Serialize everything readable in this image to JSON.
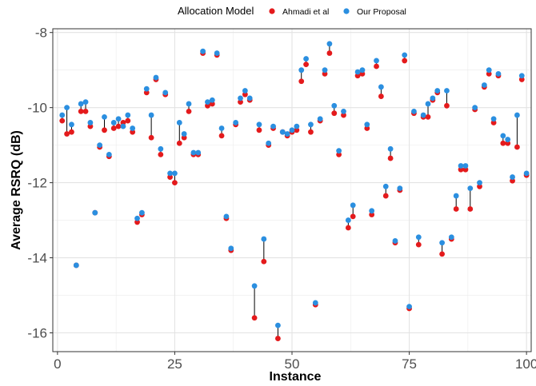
{
  "chart_data": {
    "type": "scatter",
    "title": "",
    "xlabel": "Instance",
    "ylabel": "Average RSRQ (dB)",
    "xlim": [
      -1,
      101
    ],
    "ylim": [
      -16.5,
      -7.9
    ],
    "x_ticks": [
      0,
      25,
      50,
      75,
      100
    ],
    "y_ticks": [
      -16,
      -14,
      -12,
      -10,
      -8
    ],
    "x_tick_labels": [
      "0",
      "25",
      "50",
      "75",
      "100"
    ],
    "y_tick_labels": [
      "-16",
      "-14",
      "-12",
      "-10",
      "-8"
    ],
    "grid": true,
    "legend": {
      "title": "Allocation Model",
      "position": "top",
      "entries": [
        "Ahmadi et al",
        "Our Proposal"
      ]
    },
    "colors": {
      "Ahmadi et al": "#e41a1c",
      "Our Proposal": "#2b8fe0",
      "connector": "#000000"
    },
    "x": [
      1,
      2,
      3,
      4,
      5,
      6,
      7,
      8,
      9,
      10,
      11,
      12,
      13,
      14,
      15,
      16,
      17,
      18,
      19,
      20,
      21,
      22,
      23,
      24,
      25,
      26,
      27,
      28,
      29,
      30,
      31,
      32,
      33,
      34,
      35,
      36,
      37,
      38,
      39,
      40,
      41,
      42,
      43,
      44,
      45,
      46,
      47,
      48,
      49,
      50,
      51,
      52,
      53,
      54,
      55,
      56,
      57,
      58,
      59,
      60,
      61,
      62,
      63,
      64,
      65,
      66,
      67,
      68,
      69,
      70,
      71,
      72,
      73,
      74,
      75,
      76,
      77,
      78,
      79,
      80,
      81,
      82,
      83,
      84,
      85,
      86,
      87,
      88,
      89,
      90,
      91,
      92,
      93,
      94,
      95,
      96,
      97,
      98,
      99,
      100
    ],
    "series": [
      {
        "name": "Ahmadi et al",
        "values": [
          -10.35,
          -10.7,
          -10.65,
          -14.2,
          -10.1,
          -10.1,
          -10.5,
          -12.8,
          -11.05,
          -10.6,
          -11.3,
          -10.55,
          -10.5,
          -10.4,
          -10.35,
          -10.65,
          -13.05,
          -12.85,
          -9.6,
          -10.8,
          -9.25,
          -11.25,
          -9.65,
          -11.85,
          -12.0,
          -10.95,
          -10.8,
          -10.1,
          -11.25,
          -11.25,
          -8.55,
          -9.95,
          -9.9,
          -8.6,
          -10.75,
          -12.95,
          -13.8,
          -10.45,
          -9.85,
          -9.65,
          -9.8,
          -15.6,
          -10.6,
          -14.1,
          -11.0,
          -10.55,
          -16.15,
          -10.65,
          -10.75,
          -10.65,
          -10.6,
          -9.3,
          -8.85,
          -10.65,
          -15.25,
          -10.35,
          -9.1,
          -8.55,
          -10.15,
          -11.25,
          -10.2,
          -13.2,
          -12.9,
          -9.15,
          -9.1,
          -10.55,
          -12.85,
          -8.9,
          -9.7,
          -12.35,
          -11.35,
          -13.6,
          -12.2,
          -8.75,
          -15.35,
          -10.15,
          -13.65,
          -10.25,
          -10.25,
          -9.8,
          -9.6,
          -13.9,
          -9.95,
          -13.5,
          -12.7,
          -11.65,
          -11.65,
          -12.7,
          -10.05,
          -12.1,
          -9.45,
          -9.1,
          -10.4,
          -9.15,
          -10.95,
          -10.95,
          -11.95,
          -11.05,
          -9.25,
          -11.8
        ]
      },
      {
        "name": "Our Proposal",
        "values": [
          -10.2,
          -10.0,
          -10.45,
          -14.2,
          -9.9,
          -9.85,
          -10.4,
          -12.8,
          -11.0,
          -10.25,
          -11.25,
          -10.4,
          -10.3,
          -10.5,
          -10.2,
          -10.55,
          -12.95,
          -12.8,
          -9.5,
          -10.2,
          -9.2,
          -11.1,
          -9.6,
          -11.75,
          -11.75,
          -10.4,
          -10.7,
          -9.9,
          -11.2,
          -11.2,
          -8.5,
          -9.85,
          -9.8,
          -8.55,
          -10.55,
          -12.9,
          -13.75,
          -10.4,
          -9.75,
          -9.55,
          -9.75,
          -14.75,
          -10.45,
          -13.5,
          -10.95,
          -10.5,
          -15.8,
          -10.65,
          -10.7,
          -10.6,
          -10.5,
          -9.0,
          -8.7,
          -10.45,
          -15.2,
          -10.3,
          -9.0,
          -8.3,
          -9.95,
          -11.15,
          -10.1,
          -13.0,
          -12.6,
          -9.05,
          -9.0,
          -10.45,
          -12.75,
          -8.75,
          -9.45,
          -12.1,
          -11.1,
          -13.55,
          -12.15,
          -8.6,
          -15.3,
          -10.1,
          -13.45,
          -10.2,
          -9.9,
          -9.75,
          -9.55,
          -13.6,
          -9.55,
          -13.45,
          -12.35,
          -11.55,
          -11.55,
          -12.15,
          -10.0,
          -12.0,
          -9.4,
          -9.0,
          -10.3,
          -9.1,
          -10.75,
          -10.85,
          -11.85,
          -10.2,
          -9.15,
          -11.75
        ]
      }
    ]
  }
}
